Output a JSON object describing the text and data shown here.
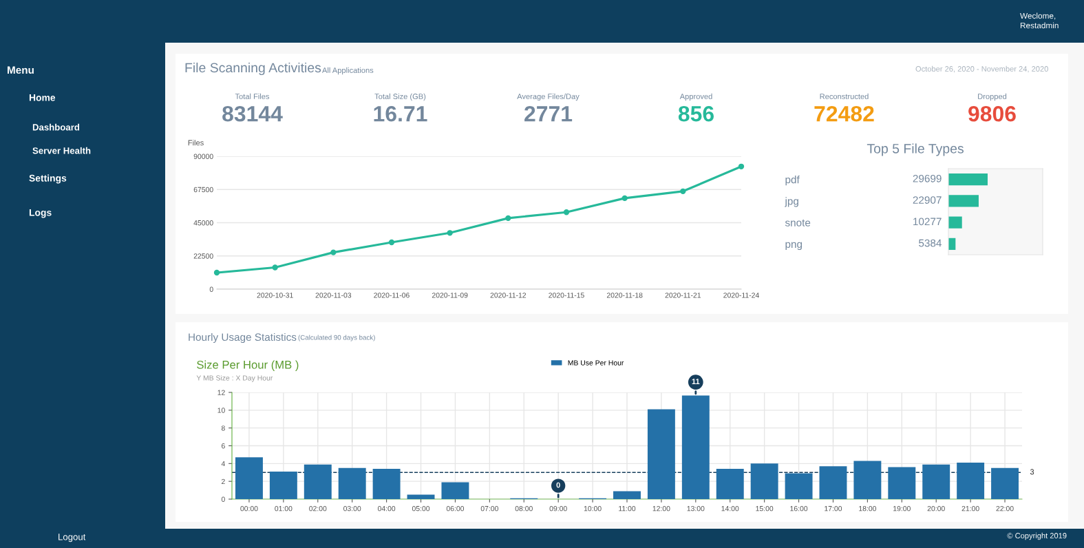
{
  "chart_data": [
    {
      "type": "other",
      "annotations": [
        "Menu",
        "Home",
        "Dashboard",
        "Server Health",
        "Settings",
        "Logs",
        "Logout"
      ]
    },
    {
      "type": "other",
      "title": "File Scanning Activities",
      "categories": [
        "Total Files",
        "Total Size (GB)",
        "Average Files/Day",
        "Approved",
        "Reconstructed",
        "Dropped"
      ],
      "value_labels": [
        "83144",
        "16.71",
        "2771",
        "856",
        "72482",
        "9806"
      ],
      "colors": [
        "#73879c",
        "#73879c",
        "#73879c",
        "#26b99a",
        "#f39c12",
        "#e74c3c"
      ],
      "annotations": [
        "All Applications",
        "October 26, 2020 - November 24, 2020",
        "Hourly Usage Statistics",
        "(Calculated 90 days back)",
        "Weclome,",
        "Restadmin",
        "© Copyright 2019"
      ]
    },
    {
      "type": "line",
      "ylabel": "Files",
      "x": [
        "2020-10-28",
        "2020-10-31",
        "2020-11-03",
        "2020-11-06",
        "2020-11-09",
        "2020-11-12",
        "2020-11-15",
        "2020-11-18",
        "2020-11-21",
        "2020-11-24"
      ],
      "series": [
        {
          "color": "#26b99a",
          "values": [
            11200,
            14700,
            24900,
            31700,
            38100,
            48100,
            52100,
            61600,
            66300,
            83100
          ]
        }
      ],
      "xlim": [
        "2020-10-28",
        "2020-11-24"
      ],
      "xticks": [
        "2020-10-31",
        "2020-11-03",
        "2020-11-06",
        "2020-11-09",
        "2020-11-12",
        "2020-11-15",
        "2020-11-18",
        "2020-11-21",
        "2020-11-24"
      ],
      "ylim": [
        0,
        90000
      ],
      "yticks": [
        0,
        22500,
        45000,
        67500,
        90000
      ],
      "grid": "y",
      "marker": "circle",
      "line_style": "solid"
    },
    {
      "type": "bar",
      "orientation": "horizontal",
      "title": "Top 5 File Types",
      "categories": [
        "pdf",
        "jpg",
        "snote",
        "png"
      ],
      "values": [
        29699,
        22907,
        10277,
        5384
      ],
      "color": "#26b99a",
      "xlim": [
        0,
        71400
      ],
      "data_labels": true,
      "tick_labels": "y"
    },
    {
      "type": "bar",
      "title": "Size Per Hour (MB )",
      "subtitle": "Y MB Size : X Day Hour",
      "categories": [
        "00:00",
        "01:00",
        "02:00",
        "03:00",
        "04:00",
        "05:00",
        "06:00",
        "07:00",
        "08:00",
        "09:00",
        "10:00",
        "11:00",
        "12:00",
        "13:00",
        "14:00",
        "15:00",
        "16:00",
        "17:00",
        "18:00",
        "19:00",
        "20:00",
        "21:00",
        "22:00"
      ],
      "series": [
        {
          "name": "MB Use Per Hour",
          "color": "#2471a8",
          "values": [
            4.7,
            3.1,
            3.9,
            3.5,
            3.4,
            0.5,
            1.9,
            0,
            0.1,
            0,
            0.1,
            0.9,
            10.1,
            11.65,
            3.4,
            4.0,
            2.9,
            3.7,
            4.3,
            3.6,
            3.9,
            4.1,
            3.5
          ]
        }
      ],
      "ylim": [
        0,
        12
      ],
      "yticks": [
        0,
        2,
        4,
        6,
        8,
        10,
        12
      ],
      "grid": true,
      "legend": "top",
      "ref_lines": [
        {
          "axis": "y",
          "value": 3,
          "label": "3",
          "color": "#163e5c",
          "line_style": "dashed"
        }
      ],
      "annotations": [
        {
          "text": "11",
          "x": "13:00",
          "y": 11.65
        },
        {
          "text": "0",
          "x": "09:00",
          "y": 0
        }
      ]
    }
  ]
}
